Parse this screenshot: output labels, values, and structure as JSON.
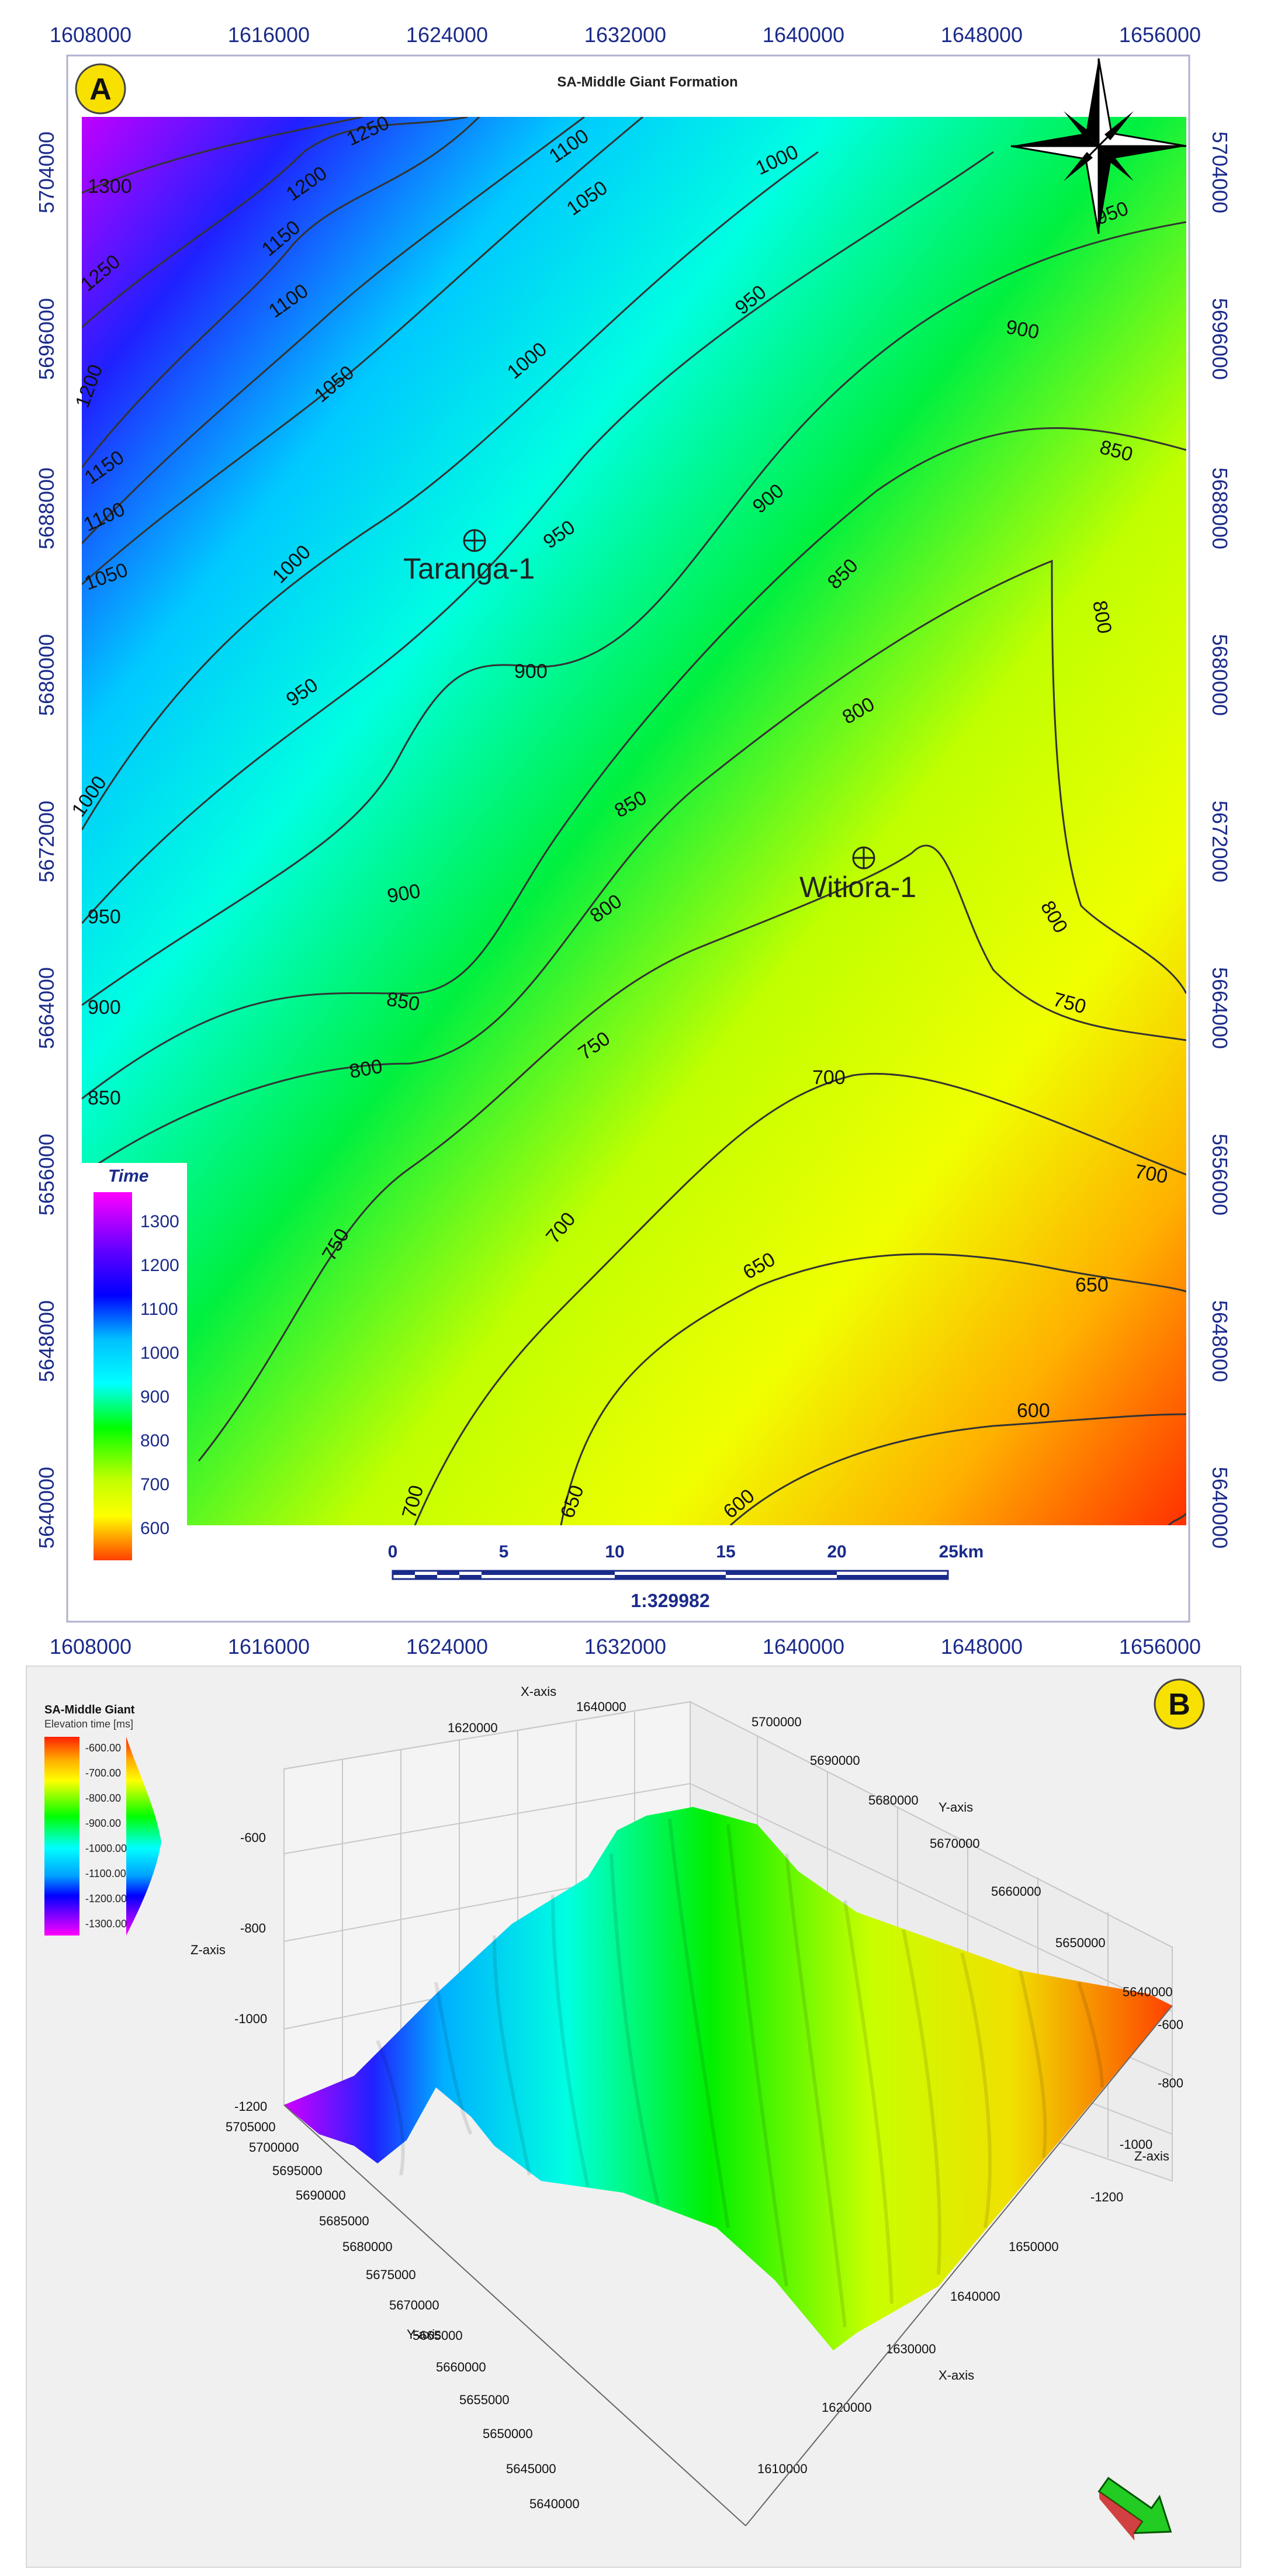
{
  "panel_a": {
    "badge": "A",
    "title": "SA-Middle Giant Formation",
    "x_ticks": [
      "1608000",
      "1616000",
      "1624000",
      "1632000",
      "1640000",
      "1648000",
      "1656000"
    ],
    "y_ticks": [
      "5704000",
      "5696000",
      "5688000",
      "5680000",
      "5672000",
      "5664000",
      "5656000",
      "5648000",
      "5640000"
    ],
    "wells": [
      {
        "name": "Taranga-1"
      },
      {
        "name": "Witiora-1"
      }
    ],
    "legend": {
      "title": "Time",
      "labels": [
        "1300",
        "1200",
        "1100",
        "1000",
        "900",
        "800",
        "700",
        "600"
      ]
    },
    "scale_bar": {
      "labels": [
        "0",
        "5",
        "10",
        "15",
        "20",
        "25km"
      ],
      "ratio": "1:329982"
    },
    "contour_labels": [
      "1300",
      "1250",
      "1250",
      "1200",
      "1200",
      "1150",
      "1150",
      "1100",
      "1100",
      "1100",
      "1050",
      "1050",
      "1050",
      "1000",
      "1000",
      "1000",
      "1000",
      "950",
      "950",
      "950",
      "950",
      "950",
      "900",
      "900",
      "900",
      "900",
      "900",
      "850",
      "850",
      "850",
      "850",
      "850",
      "800",
      "800",
      "800",
      "800",
      "800",
      "750",
      "750",
      "750",
      "700",
      "700",
      "700",
      "650",
      "650",
      "650",
      "600",
      "600",
      "700"
    ],
    "colors": {
      "purple": "#c000ff",
      "blue": "#0000e0",
      "cyan": "#00ffff",
      "green": "#00f000",
      "yellow": "#f0ff00",
      "orange": "#ffa000",
      "red": "#ff3000"
    }
  },
  "panel_b": {
    "badge": "B",
    "legend_title": "SA-Middle Giant",
    "legend_subtitle": "Elevation time [ms]",
    "legend_labels": [
      "-600.00",
      "-700.00",
      "-800.00",
      "-900.00",
      "-1000.00",
      "-1100.00",
      "-1200.00",
      "-1300.00"
    ],
    "x_axis_label": "X-axis",
    "y_axis_label": "Y-axis",
    "z_axis_label": "Z-axis",
    "x_ticks_top": [
      "1620000",
      "1640000"
    ],
    "y_ticks_right": [
      "5700000",
      "5690000",
      "5680000",
      "5670000",
      "5660000",
      "5650000",
      "5640000"
    ],
    "z_ticks_left": [
      "-600",
      "-800",
      "-1000",
      "-1200"
    ],
    "z_ticks_right": [
      "-600",
      "-800",
      "-1000",
      "-1200"
    ],
    "y_ticks_left": [
      "5705000",
      "5700000",
      "5695000",
      "5690000",
      "5685000",
      "5680000",
      "5675000",
      "5670000",
      "5665000",
      "5660000",
      "5655000",
      "5650000",
      "5645000",
      "5640000"
    ],
    "x_ticks_bottom": [
      "1650000",
      "1640000",
      "1630000",
      "1620000",
      "1610000"
    ]
  }
}
